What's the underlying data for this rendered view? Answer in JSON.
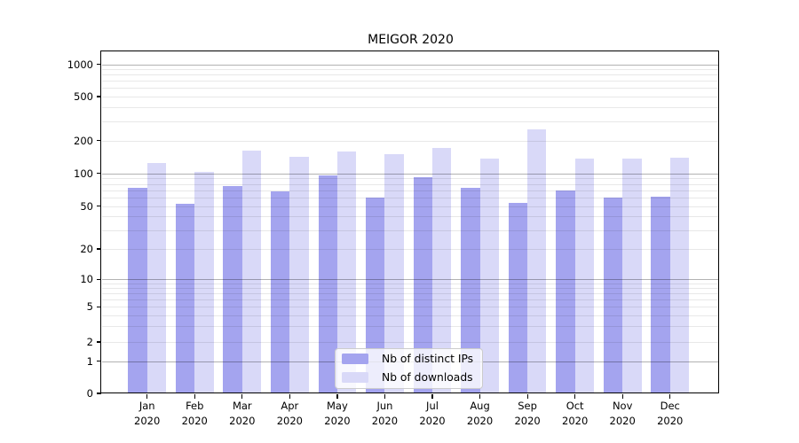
{
  "chart_data": {
    "type": "bar",
    "title": "MEIGOR 2020",
    "categories": [
      "Jan",
      "Feb",
      "Mar",
      "Apr",
      "May",
      "Jun",
      "Jul",
      "Aug",
      "Sep",
      "Oct",
      "Nov",
      "Dec"
    ],
    "x_tick_second_line": "2020",
    "series": [
      {
        "name": "Nb of distinct IPs",
        "color": "#a4a4ef",
        "values": [
          73,
          53,
          76,
          69,
          96,
          60,
          93,
          73,
          54,
          70,
          60,
          61
        ]
      },
      {
        "name": "Nb of downloads",
        "color": "#d9d9f8",
        "values": [
          124,
          104,
          160,
          142,
          158,
          150,
          170,
          136,
          250,
          136,
          136,
          140
        ]
      }
    ],
    "yticks": [
      0,
      1,
      2,
      5,
      10,
      20,
      50,
      100,
      200,
      500,
      1000
    ],
    "ytick_labels": [
      "0",
      "1",
      "2",
      "5",
      "10",
      "20",
      "50",
      "100",
      "200",
      "500",
      "1000"
    ],
    "ylim": [
      0,
      1300
    ],
    "scale": "symlog",
    "grid": {
      "major_lines": [
        1,
        10,
        100,
        1000
      ],
      "minor_lines": [
        2,
        3,
        4,
        5,
        6,
        7,
        8,
        9,
        20,
        30,
        40,
        50,
        60,
        70,
        80,
        90,
        200,
        300,
        400,
        500,
        600,
        700,
        800,
        900
      ],
      "major_color": "rgba(0,0,0,0.30)",
      "minor_color": "rgba(0,0,0,0.09)"
    },
    "legend": {
      "position": "lower-center",
      "entries": [
        "Nb of distinct IPs",
        "Nb of downloads"
      ]
    },
    "axis_color": "#000000",
    "background": "#ffffff"
  }
}
